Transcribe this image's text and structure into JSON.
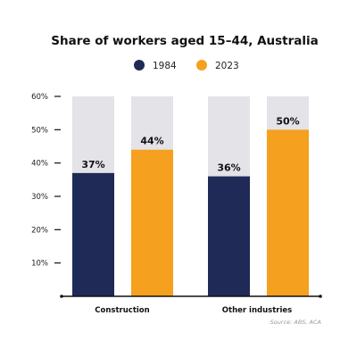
{
  "chart_data": {
    "type": "bar",
    "title": "Share of workers aged 15–44, Australia",
    "categories": [
      "Construction",
      "Other industries"
    ],
    "series": [
      {
        "name": "1984",
        "values": [
          37,
          36
        ],
        "color": "#1f2a56"
      },
      {
        "name": "2023",
        "values": [
          44,
          50
        ],
        "color": "#f6a01f"
      }
    ],
    "value_labels": [
      [
        "37%",
        "36%"
      ],
      [
        "44%",
        "50%"
      ]
    ],
    "ylim": [
      0,
      60
    ],
    "yticks": [
      0,
      10,
      20,
      30,
      40,
      50,
      60
    ],
    "ytick_labels": [
      "",
      "10%",
      "20%",
      "30%",
      "40%",
      "50%",
      "60%"
    ],
    "background_bar_color": "#e3e3e8",
    "legend_position": "top-center",
    "grid": false,
    "source": "Source: ABS, ACA"
  }
}
